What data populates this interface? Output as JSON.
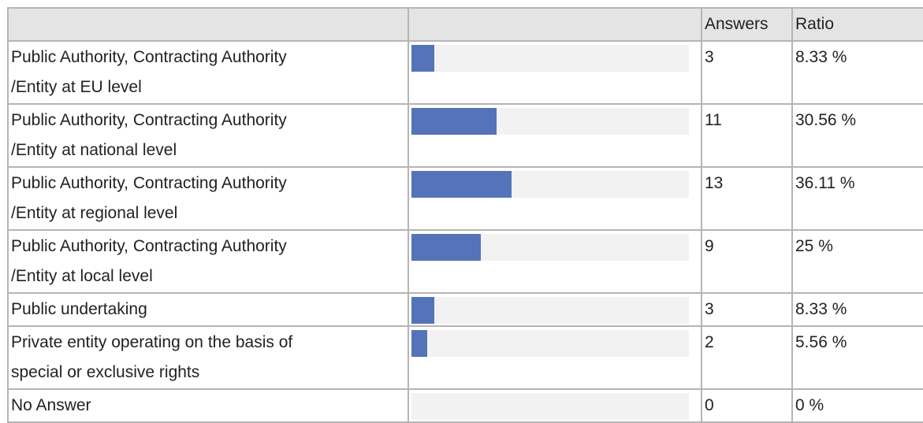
{
  "table": {
    "header": [
      "Answers",
      "Ratio"
    ],
    "rows": [
      {
        "label": [
          "Public Authority, Contracting Authority",
          "/Entity at EU level"
        ],
        "answers": 3,
        "ratio": {
          "value": 8.33,
          "label": "8.33 %"
        }
      },
      {
        "label": [
          "Public Authority, Contracting Authority",
          "/Entity at national level"
        ],
        "answers": 11,
        "ratio": {
          "value": 30.56,
          "label": "30.56 %"
        }
      },
      {
        "label": [
          "Public Authority, Contracting Authority",
          "/Entity at regional level"
        ],
        "answers": 13,
        "ratio": {
          "value": 36.11,
          "label": "36.11 %"
        }
      },
      {
        "label": [
          "Public Authority, Contracting Authority",
          "/Entity at local level"
        ],
        "answers": 9,
        "ratio": {
          "value": 25,
          "label": "25 %"
        }
      },
      {
        "label": [
          "Public undertaking"
        ],
        "answers": 3,
        "ratio": {
          "value": 8.33,
          "label": "8.33 %"
        }
      },
      {
        "label": [
          "Private entity operating on the basis of",
          "special or exclusive rights"
        ],
        "answers": 2,
        "ratio": {
          "value": 5.56,
          "label": "5.56 %"
        }
      },
      {
        "label": [
          "No Answer"
        ],
        "answers": 0,
        "ratio": {
          "value": 0,
          "label": "0 %"
        }
      }
    ]
  }
}
